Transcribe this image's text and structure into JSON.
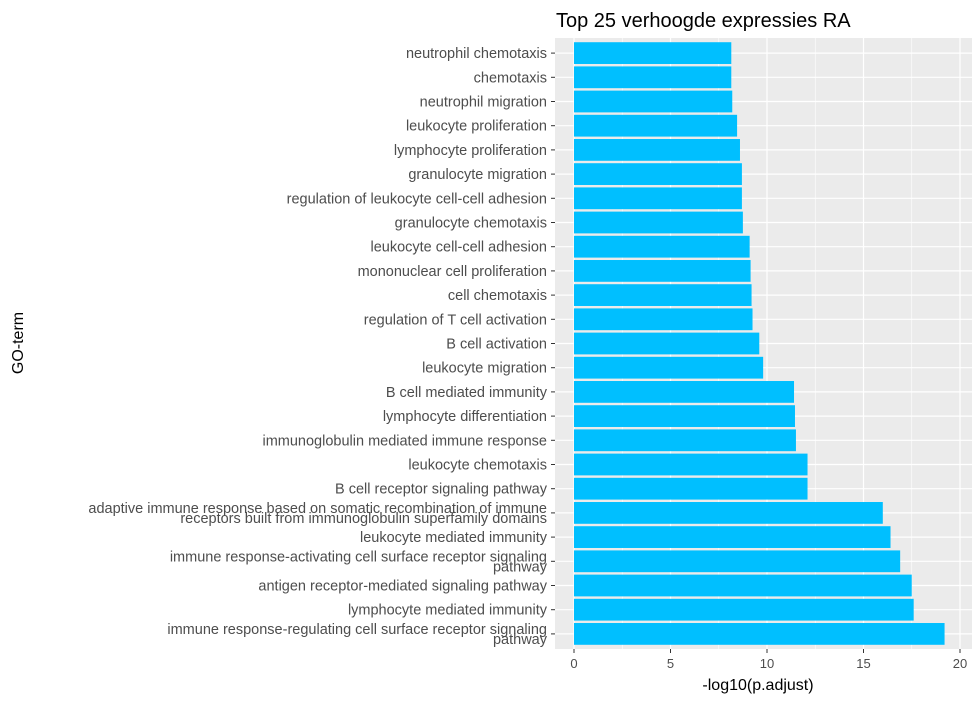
{
  "chart_data": {
    "type": "bar",
    "orientation": "horizontal",
    "title": "Top 25 verhoogde expressies RA",
    "xlabel": "-log10(p.adjust)",
    "ylabel": "GO-term",
    "xlim": [
      0,
      20
    ],
    "x_ticks": [
      "0",
      "5",
      "10",
      "15",
      "20"
    ],
    "grid": true,
    "bar_color": "#00BFFF",
    "panel_background": "#EBEBEB",
    "categories": [
      "neutrophil chemotaxis",
      "chemotaxis",
      "neutrophil migration",
      "leukocyte proliferation",
      "lymphocyte proliferation",
      "granulocyte migration",
      "regulation of leukocyte cell-cell adhesion",
      "granulocyte chemotaxis",
      "leukocyte cell-cell adhesion",
      "mononuclear cell proliferation",
      "cell chemotaxis",
      "regulation of T cell activation",
      "B cell activation",
      "leukocyte migration",
      "B cell mediated immunity",
      "lymphocyte differentiation",
      "immunoglobulin mediated immune response",
      "leukocyte chemotaxis",
      "B cell receptor signaling pathway",
      "adaptive immune response based on somatic recombination of immune\nreceptors built from immunoglobulin superfamily domains",
      "leukocyte mediated immunity",
      "immune response-activating cell surface receptor signaling\npathway",
      "antigen receptor-mediated signaling pathway",
      "lymphocyte mediated immunity",
      "immune response-regulating cell surface receptor signaling\npathway"
    ],
    "values": [
      8.15,
      8.15,
      8.2,
      8.45,
      8.6,
      8.7,
      8.7,
      8.75,
      9.1,
      9.15,
      9.2,
      9.25,
      9.6,
      9.8,
      11.4,
      11.45,
      11.5,
      12.1,
      12.1,
      16.0,
      16.4,
      16.9,
      17.5,
      17.6,
      19.2
    ]
  }
}
